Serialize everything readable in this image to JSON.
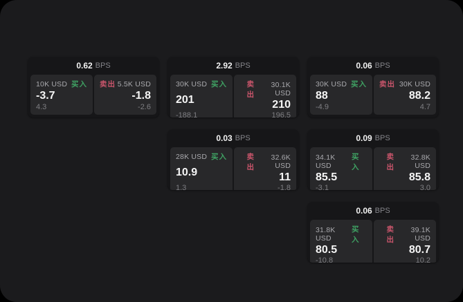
{
  "labels": {
    "bps_suffix": "BPS",
    "buy": "买入",
    "sell": "卖出"
  },
  "colors": {
    "buy_green": "#3fa263",
    "sell_red": "#c9556b",
    "panel_bg": "#1b1b1d",
    "card_bg": "#161618",
    "tile_bg": "#28282a"
  },
  "cards": [
    {
      "col": 1,
      "row": 1,
      "bps": "0.62",
      "buy": {
        "size": "10K USD",
        "value": "-3.7",
        "delta": "4.3"
      },
      "sell": {
        "size": "5.5K USD",
        "value": "-1.8",
        "delta": "-2.6"
      }
    },
    {
      "col": 2,
      "row": 1,
      "bps": "2.92",
      "buy": {
        "size": "30K USD",
        "value": "201",
        "delta": "-188.1"
      },
      "sell": {
        "size": "30.1K USD",
        "value": "210",
        "delta": "196.5"
      }
    },
    {
      "col": 3,
      "row": 1,
      "bps": "0.06",
      "buy": {
        "size": "30K USD",
        "value": "88",
        "delta": "-4.9"
      },
      "sell": {
        "size": "30K USD",
        "value": "88.2",
        "delta": "4.7"
      }
    },
    {
      "col": 2,
      "row": 2,
      "bps": "0.03",
      "buy": {
        "size": "28K USD",
        "value": "10.9",
        "delta": "1.3"
      },
      "sell": {
        "size": "32.6K USD",
        "value": "11",
        "delta": "-1.8"
      }
    },
    {
      "col": 3,
      "row": 2,
      "bps": "0.09",
      "buy": {
        "size": "34.1K USD",
        "value": "85.5",
        "delta": "-3.1"
      },
      "sell": {
        "size": "32.8K USD",
        "value": "85.8",
        "delta": "3.0"
      }
    },
    {
      "col": 3,
      "row": 3,
      "bps": "0.06",
      "buy": {
        "size": "31.8K USD",
        "value": "80.5",
        "delta": "-10.8"
      },
      "sell": {
        "size": "39.1K USD",
        "value": "80.7",
        "delta": "10.2"
      }
    }
  ]
}
